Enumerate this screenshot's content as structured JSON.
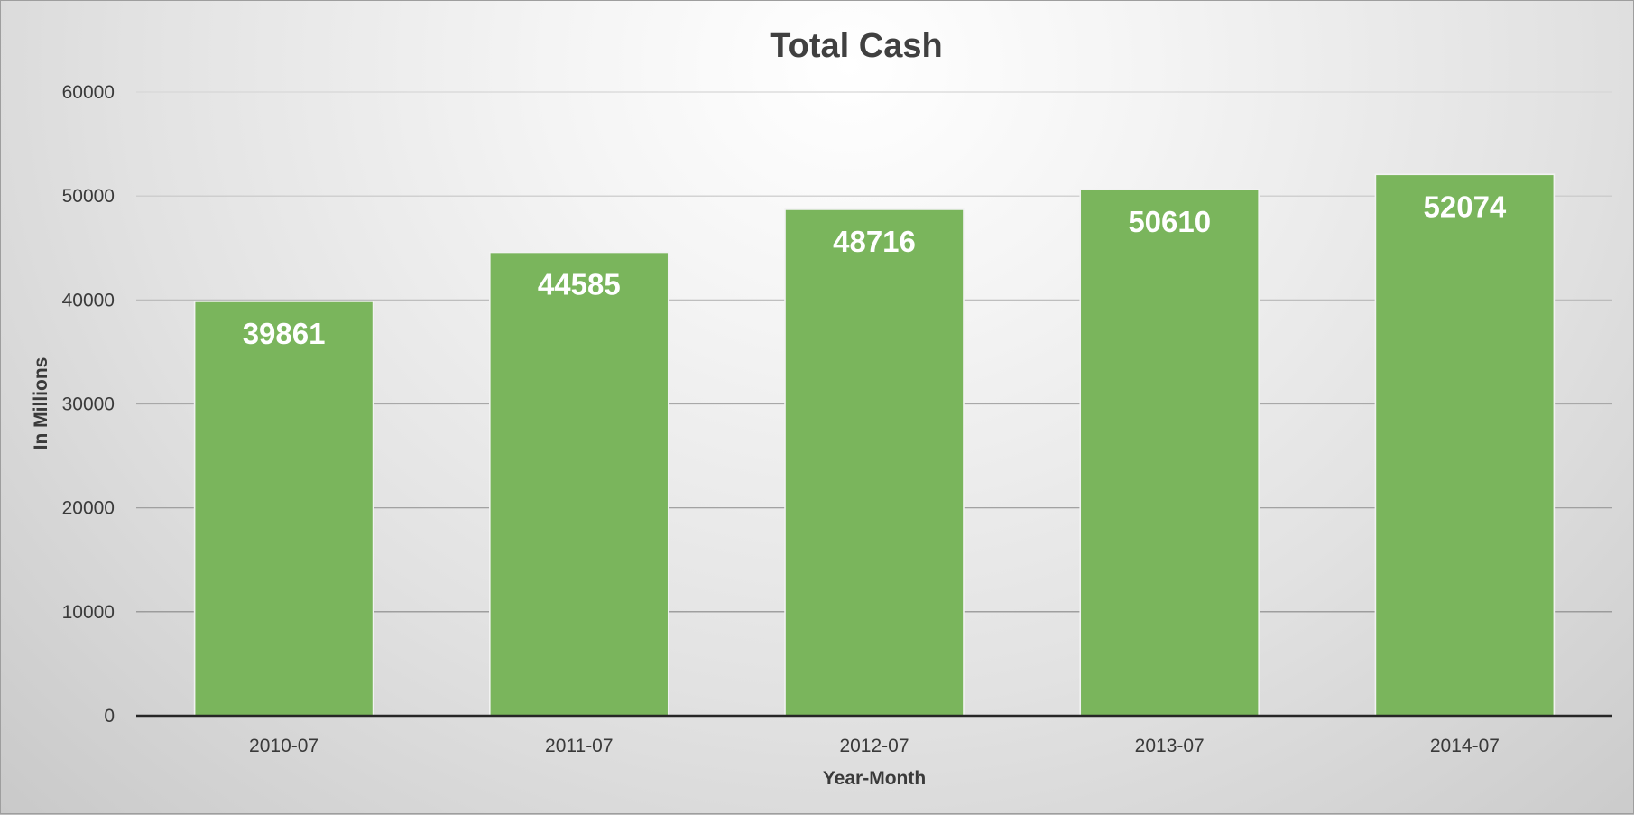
{
  "chart_data": {
    "type": "bar",
    "title": "Total Cash",
    "xlabel": "Year-Month",
    "ylabel": "In Millions",
    "categories": [
      "2010-07",
      "2011-07",
      "2012-07",
      "2013-07",
      "2014-07"
    ],
    "values": [
      39861,
      44585,
      48716,
      50610,
      52074
    ],
    "data_labels": [
      "39861",
      "44585",
      "48716",
      "50610",
      "52074"
    ],
    "ylim": [
      0,
      60000
    ],
    "y_ticks": [
      0,
      10000,
      20000,
      30000,
      40000,
      50000,
      60000
    ],
    "y_tick_labels": [
      "0",
      "10000",
      "20000",
      "30000",
      "40000",
      "50000",
      "60000"
    ],
    "grid": true,
    "legend": "none",
    "colors": {
      "bar": "#7ab55c",
      "gridline": "#c8c8c8",
      "axis": "#262626"
    }
  }
}
